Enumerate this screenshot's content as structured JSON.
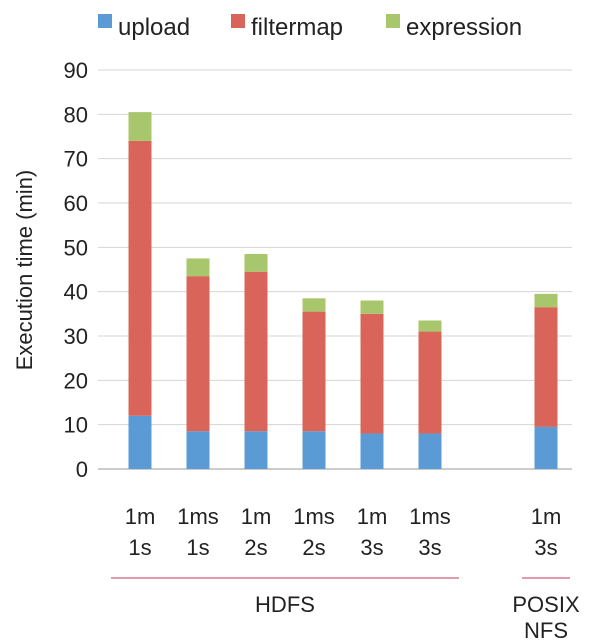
{
  "chart_data": {
    "type": "bar",
    "stacked": true,
    "title": "",
    "ylabel": "Execution time (min)",
    "xlabel": "",
    "ylim": [
      0,
      90
    ],
    "yticks": [
      0,
      10,
      20,
      30,
      40,
      50,
      60,
      70,
      80,
      90
    ],
    "grid": true,
    "legend_position": "top",
    "categories": [
      {
        "line1": "1m",
        "line2": "1s"
      },
      {
        "line1": "1ms",
        "line2": "1s"
      },
      {
        "line1": "1m",
        "line2": "2s"
      },
      {
        "line1": "1ms",
        "line2": "2s"
      },
      {
        "line1": "1m",
        "line2": "3s"
      },
      {
        "line1": "1ms",
        "line2": "3s"
      },
      {
        "line1": "",
        "line2": ""
      },
      {
        "line1": "1m",
        "line2": "3s"
      }
    ],
    "series": [
      {
        "name": "upload",
        "color": "#5b9bd5",
        "values": [
          12,
          8.5,
          8.5,
          8.5,
          8,
          8,
          null,
          9.5
        ]
      },
      {
        "name": "filtermap",
        "color": "#d9645a",
        "values": [
          62,
          35,
          36,
          27,
          27,
          23,
          null,
          27
        ]
      },
      {
        "name": "expression",
        "color": "#a8c66c",
        "values": [
          6.5,
          4,
          4,
          3,
          3,
          2.5,
          null,
          3
        ]
      }
    ],
    "groups": [
      {
        "label_line1": "HDFS",
        "label_line2": "",
        "start": 0,
        "end": 5
      },
      {
        "label_line1": "POSIX",
        "label_line2": "NFS",
        "start": 7,
        "end": 7
      }
    ]
  }
}
